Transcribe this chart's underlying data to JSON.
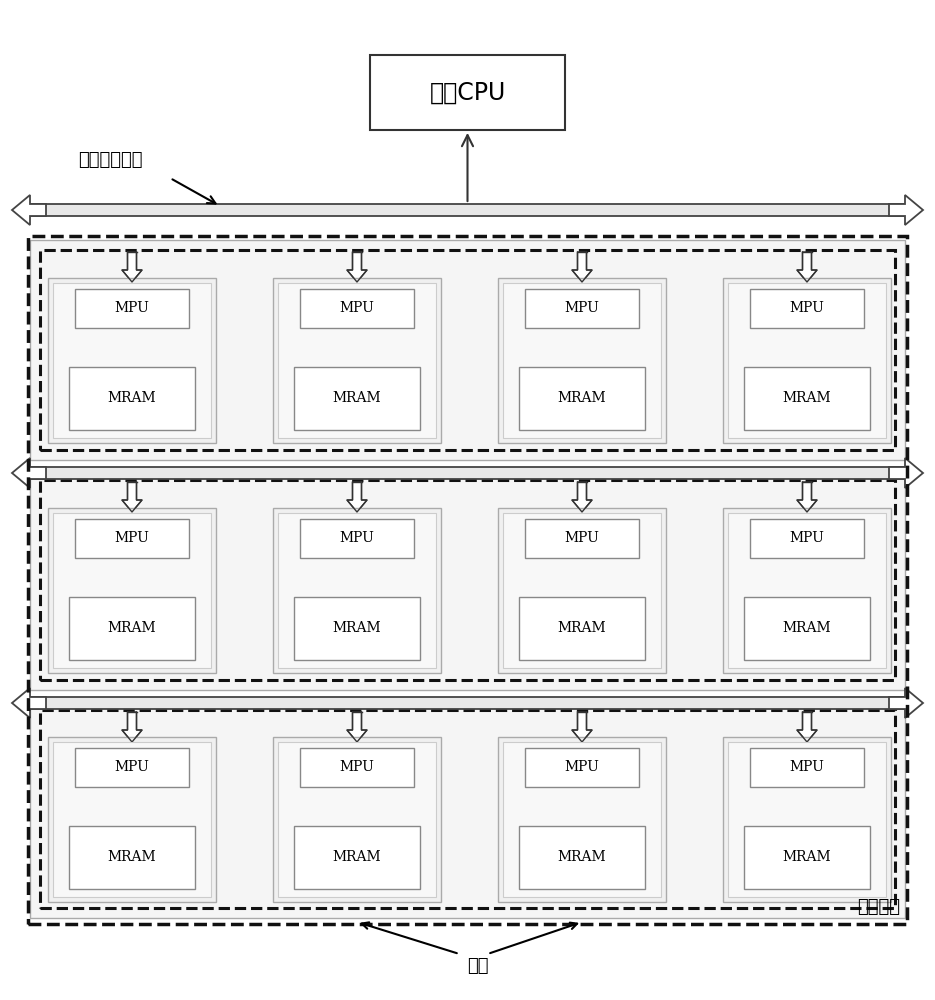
{
  "title": "主控CPU",
  "label_bus": "细胞阵列总线",
  "label_cell_array": "细胞阵列",
  "label_cell": "细胞",
  "mpu_label": "MPU",
  "mram_label": "MRAM",
  "bg_color": "#ffffff",
  "fig_w": 9.35,
  "fig_h": 10.0,
  "dpi": 100
}
